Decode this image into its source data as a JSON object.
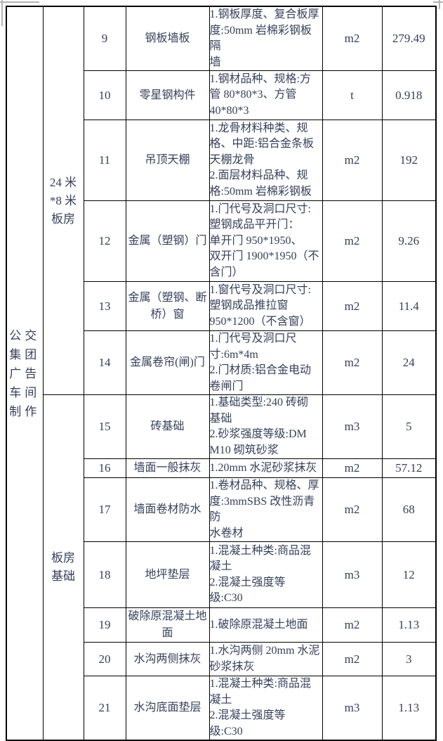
{
  "page": {
    "text_color": "#35405a",
    "border_color": "#000000",
    "crop_mark_color": "#b3b3b3"
  },
  "table": {
    "project": "公交\n集团\n广告\n车间\n制作",
    "sections": [
      {
        "name": "24 米\n*8 米\n板房",
        "rows": [
          {
            "no": "9",
            "item": "钢板墙板",
            "desc": "1.钢板厚度、复合板厚\n度:50mm 岩棉彩钢板隔\n墙",
            "unit": "m2",
            "qty": "279.49"
          },
          {
            "no": "10",
            "item": "零星钢构件",
            "desc": "1.钢材品种、规格:方\n管 80*80*3、方管\n40*80*3",
            "unit": "t",
            "qty": "0.918"
          },
          {
            "no": "11",
            "item": "吊顶天棚",
            "desc": "1.龙骨材料种类、规\n格、中距:铝合金条板\n天棚龙骨\n2.面层材料品种、规\n格:50mm 岩棉彩钢板",
            "unit": "m2",
            "qty": "192"
          },
          {
            "no": "12",
            "item": "金属（塑钢）门",
            "desc": "1.门代号及洞口尺寸:\n塑钢成品平开门：\n单开门 950*1950、\n双开门 1900*1950（不\n含门）",
            "unit": "m2",
            "qty": "9.26"
          },
          {
            "no": "13",
            "item": "金属（塑钢、断\n桥）窗",
            "desc": "1.窗代号及洞口尺寸:\n塑钢成品推拉窗\n950*1200（不含窗）",
            "unit": "m2",
            "qty": "11.4"
          },
          {
            "no": "14",
            "item": "金属卷帘(闸)门",
            "desc": "1.门代号及洞口尺\n寸:6m*4m\n2.门材质:铝合金电动\n卷闸门",
            "unit": "m2",
            "qty": "24"
          }
        ]
      },
      {
        "name": "板房\n基础",
        "rows": [
          {
            "no": "15",
            "item": "砖基础",
            "desc": "1.基础类型:240 砖砌\n基础\n2.砂浆强度等级:DM\nM10 砌筑砂浆",
            "unit": "m3",
            "qty": "5"
          },
          {
            "no": "16",
            "item": "墙面一般抹灰",
            "desc": "1.20mm 水泥砂浆抹灰",
            "unit": "m2",
            "qty": "57.12"
          },
          {
            "no": "17",
            "item": "墙面卷材防水",
            "desc": "1.卷材品种、规格、厚\n度:3mmSBS 改性沥青防\n水卷材",
            "unit": "m2",
            "qty": "68"
          },
          {
            "no": "18",
            "item": "地坪垫层",
            "desc": "1.混凝土种类:商品混\n凝土\n2.混凝土强度等\n级:C30",
            "unit": "m3",
            "qty": "12"
          },
          {
            "no": "19",
            "item": "破除原混凝土地\n面",
            "desc": "1.破除原混凝土地面",
            "unit": "m2",
            "qty": "1.13"
          },
          {
            "no": "20",
            "item": "水沟两侧抹灰",
            "desc": "1.水沟两侧 20mm 水泥\n砂浆抹灰",
            "unit": "m2",
            "qty": "3"
          },
          {
            "no": "21",
            "item": "水沟底面垫层",
            "desc": "1.混凝土种类:商品混\n凝土\n2.混凝土强度等\n级:C30",
            "unit": "m3",
            "qty": "1.13"
          }
        ]
      }
    ]
  }
}
